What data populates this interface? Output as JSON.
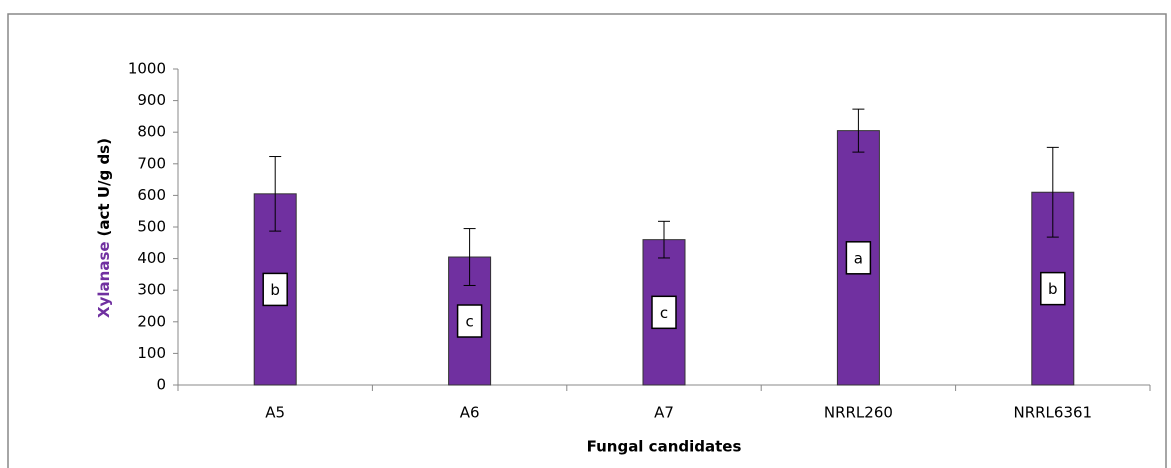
{
  "chart_data": {
    "type": "bar",
    "categories": [
      "A5",
      "A6",
      "A7",
      "NRRL260",
      "NRRL6361"
    ],
    "values": [
      605,
      405,
      460,
      805,
      610
    ],
    "errors": [
      118,
      90,
      58,
      68,
      142
    ],
    "letters": [
      "b",
      "c",
      "c",
      "a",
      "b"
    ],
    "color": "#7030a0",
    "ylim": [
      0,
      1000
    ],
    "yticks": [
      0,
      100,
      200,
      300,
      400,
      500,
      600,
      700,
      800,
      900,
      1000
    ],
    "grid": false,
    "xlabel": "Fungal candidates",
    "ylabel": [
      {
        "text": "Xylanase",
        "color": "#7030a0"
      },
      {
        "text": "(act U/g ds)",
        "color": "#000000"
      }
    ]
  }
}
